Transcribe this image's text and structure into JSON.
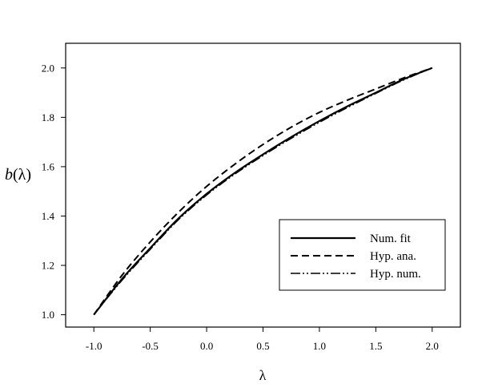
{
  "chart_data": {
    "type": "line",
    "title": "",
    "xlabel": "λ",
    "ylabel_base": "b",
    "ylabel_arg": "(λ)",
    "xlim": [
      -1.25,
      2.25
    ],
    "ylim": [
      0.95,
      2.1
    ],
    "xticks": [
      -1.0,
      -0.5,
      0.0,
      0.5,
      1.0,
      1.5,
      2.0
    ],
    "xtick_labels": [
      "-1.0",
      "-0.5",
      "0.0",
      "0.5",
      "1.0",
      "1.5",
      "2.0"
    ],
    "yticks": [
      1.0,
      1.2,
      1.4,
      1.6,
      1.8,
      2.0
    ],
    "ytick_labels": [
      "1.0",
      "1.2",
      "1.4",
      "1.6",
      "1.8",
      "2.0"
    ],
    "grid": false,
    "legend_position": "bottom-right",
    "series": [
      {
        "name": "Num. fit",
        "style": "solid",
        "x": [
          -1.0,
          -0.75,
          -0.5,
          -0.25,
          0.0,
          0.25,
          0.5,
          0.75,
          1.0,
          1.25,
          1.5,
          1.75,
          2.0
        ],
        "y": [
          1.0,
          1.145,
          1.27,
          1.39,
          1.49,
          1.575,
          1.65,
          1.72,
          1.785,
          1.845,
          1.9,
          1.955,
          2.0
        ]
      },
      {
        "name": "Hyp. ana.",
        "style": "dashed",
        "x": [
          -1.0,
          -0.75,
          -0.5,
          -0.25,
          0.0,
          0.25,
          0.5,
          0.75,
          1.0,
          1.25,
          1.5,
          1.75,
          2.0
        ],
        "y": [
          1.0,
          1.16,
          1.295,
          1.415,
          1.52,
          1.61,
          1.69,
          1.76,
          1.82,
          1.87,
          1.915,
          1.96,
          2.0
        ]
      },
      {
        "name": "Hyp. num.",
        "style": "dashdotdot",
        "x": [
          -1.0,
          -0.75,
          -0.5,
          -0.25,
          0.0,
          0.25,
          0.5,
          0.75,
          1.0,
          1.25,
          1.5,
          1.75,
          2.0
        ],
        "y": [
          1.0,
          1.14,
          1.265,
          1.385,
          1.485,
          1.57,
          1.645,
          1.715,
          1.78,
          1.84,
          1.897,
          1.952,
          2.0
        ]
      }
    ]
  }
}
